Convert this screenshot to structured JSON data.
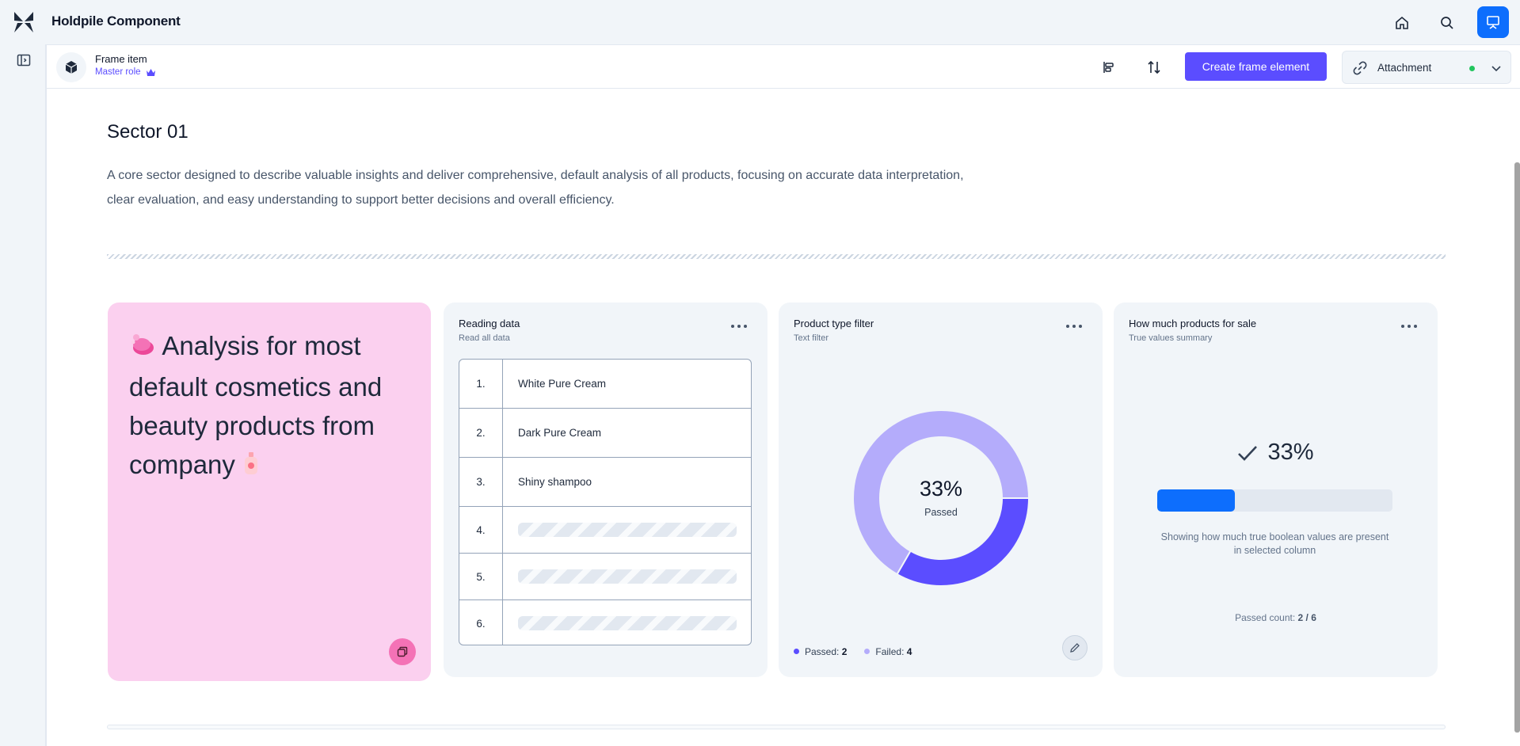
{
  "app": {
    "title": "Holdpile Component"
  },
  "subbar": {
    "frame_title": "Frame item",
    "frame_role": "Master role",
    "create_label": "Create frame element",
    "attachment_label": "Attachment"
  },
  "sector": {
    "title": "Sector 01",
    "description": "A core sector designed to describe valuable insights and deliver comprehensive, default analysis of all products, focusing on accurate data interpretation, clear evaluation, and easy understanding to support better decisions and overall efficiency."
  },
  "hero_card": {
    "text": "Analysis for most default cosmetics and beauty products from company"
  },
  "reading_card": {
    "title": "Reading data",
    "subtitle": "Read all data",
    "rows": [
      {
        "num": "1.",
        "value": "White Pure Cream"
      },
      {
        "num": "2.",
        "value": "Dark Pure Cream"
      },
      {
        "num": "3.",
        "value": "Shiny shampoo"
      },
      {
        "num": "4.",
        "value": ""
      },
      {
        "num": "5.",
        "value": ""
      },
      {
        "num": "6.",
        "value": ""
      }
    ]
  },
  "filter_card": {
    "title": "Product type filter",
    "subtitle": "Text filter",
    "percent": "33%",
    "center_label": "Passed",
    "passed_label": "Passed:",
    "passed_value": "2",
    "failed_label": "Failed:",
    "failed_value": "4"
  },
  "summary_card": {
    "title": "How much products for sale",
    "subtitle": "True values summary",
    "percent": "33%",
    "progress": 0.33,
    "description": "Showing how much true boolean values are present in selected column",
    "count_label": "Passed count:",
    "count_value": "2 / 6"
  },
  "colors": {
    "accent": "#5b4dff",
    "passed": "#5b4dff",
    "failed": "#b4acfb",
    "progress": "#0d6efd",
    "hero_bg": "#fbd0ef"
  },
  "chart_data": {
    "type": "pie",
    "categories": [
      "Passed",
      "Failed"
    ],
    "values": [
      2,
      4
    ]
  }
}
